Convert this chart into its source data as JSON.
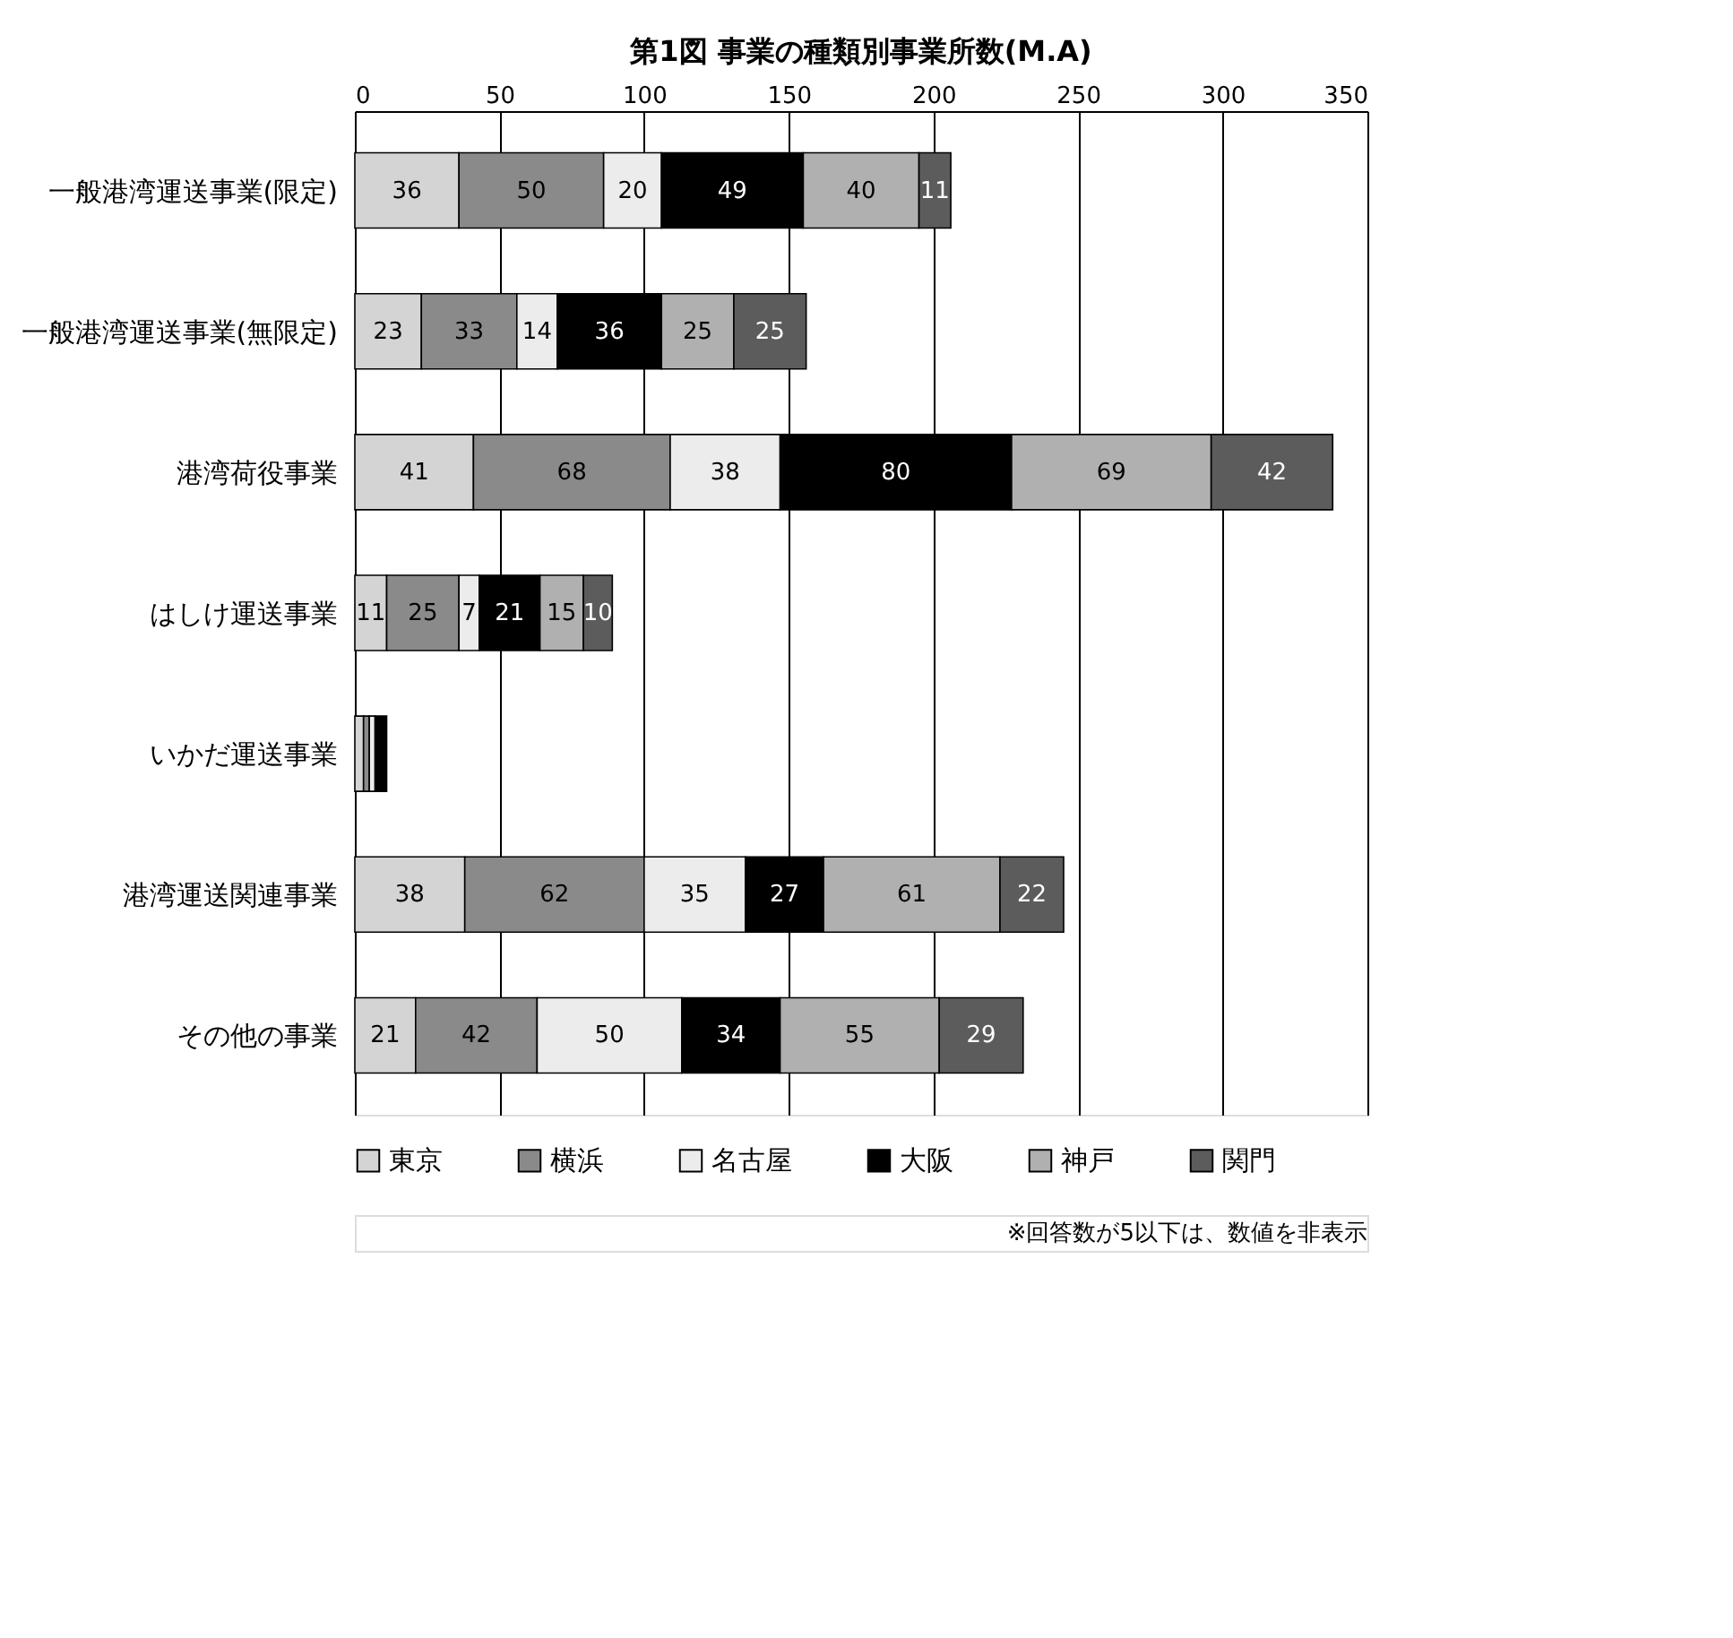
{
  "chart_data": {
    "type": "bar",
    "orientation": "horizontal",
    "stacked": true,
    "title": "第1図  事業の種類別事業所数(M.A)",
    "categories": [
      "一般港湾運送事業(限定)",
      "一般港湾運送事業(無限定)",
      "港湾荷役事業",
      "はしけ運送事業",
      "いかだ運送事業",
      "港湾運送関連事業",
      "その他の事業"
    ],
    "series": [
      {
        "name": "東京",
        "color": "#d4d4d4",
        "values": [
          36,
          23,
          41,
          11,
          3,
          38,
          21
        ],
        "value_labels": [
          "36",
          "23",
          "41",
          "11",
          null,
          "38",
          "21"
        ]
      },
      {
        "name": "横浜",
        "color": "#8a8a8a",
        "values": [
          50,
          33,
          68,
          25,
          2,
          62,
          42
        ],
        "value_labels": [
          "50",
          "33",
          "68",
          "25",
          null,
          "62",
          "42"
        ]
      },
      {
        "name": "名古屋",
        "color": "#ececec",
        "values": [
          20,
          14,
          38,
          7,
          2,
          35,
          50
        ],
        "value_labels": [
          "20",
          "14",
          "38",
          "7",
          null,
          "35",
          "50"
        ]
      },
      {
        "name": "大阪",
        "color": "#000000",
        "values": [
          49,
          36,
          80,
          21,
          4,
          27,
          34
        ],
        "value_labels": [
          "49",
          "36",
          "80",
          "21",
          null,
          "27",
          "34"
        ]
      },
      {
        "name": "神戸",
        "color": "#b0b0b0",
        "values": [
          40,
          25,
          69,
          15,
          null,
          61,
          55
        ],
        "value_labels": [
          "40",
          "25",
          "69",
          "15",
          null,
          "61",
          "55"
        ]
      },
      {
        "name": "関門",
        "color": "#5c5c5c",
        "values": [
          11,
          25,
          42,
          10,
          null,
          22,
          29
        ],
        "value_labels": [
          "11",
          "25",
          "42",
          "10",
          null,
          "22",
          "29"
        ]
      }
    ],
    "xlim": [
      0,
      350
    ],
    "xticks": [
      0,
      50,
      100,
      150,
      200,
      250,
      300,
      350
    ],
    "grid": "x",
    "legend": "bottom",
    "annotations": [
      "※回答数が5以下は、数値を非表示"
    ]
  }
}
